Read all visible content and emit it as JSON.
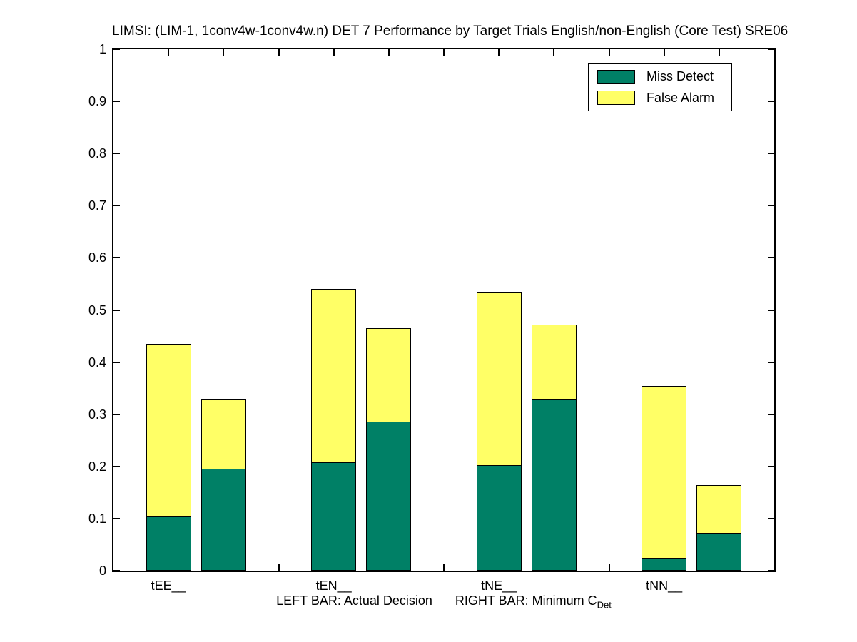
{
  "chart_data": {
    "type": "bar",
    "stacked": true,
    "layout": "pairs-per-category (left bar = Actual Decision, right bar = Minimum CDet)",
    "title": "LIMSI: (LIM-1, 1conv4w-1conv4w.n) DET 7 Performance by Target Trials English/non-English (Core Test) SRE06",
    "xlabel": {
      "left_bar": "LEFT BAR: Actual Decision",
      "right_bar": "RIGHT BAR: Minimum C",
      "subscript": "Det"
    },
    "categories": [
      "tEE__",
      "tEN__",
      "tNE__",
      "tNN__"
    ],
    "legend": [
      {
        "label": "Miss Detect",
        "color": "#008066"
      },
      {
        "label": "False Alarm",
        "color": "#FFFF66"
      }
    ],
    "groups": [
      {
        "category": "tEE__",
        "left": {
          "miss_detect": 0.104,
          "false_alarm": 0.331
        },
        "right": {
          "miss_detect": 0.196,
          "false_alarm": 0.133
        }
      },
      {
        "category": "tEN__",
        "left": {
          "miss_detect": 0.208,
          "false_alarm": 0.332
        },
        "right": {
          "miss_detect": 0.286,
          "false_alarm": 0.179
        }
      },
      {
        "category": "tNE__",
        "left": {
          "miss_detect": 0.202,
          "false_alarm": 0.332
        },
        "right": {
          "miss_detect": 0.329,
          "false_alarm": 0.143
        }
      },
      {
        "category": "tNN__",
        "left": {
          "miss_detect": 0.024,
          "false_alarm": 0.331
        },
        "right": {
          "miss_detect": 0.072,
          "false_alarm": 0.092
        }
      }
    ],
    "ylim": [
      0,
      1
    ],
    "ytick_labels": [
      "0",
      "0.1",
      "0.2",
      "0.3",
      "0.4",
      "0.5",
      "0.6",
      "0.7",
      "0.8",
      "0.9",
      "1"
    ],
    "xlim": [
      0.5,
      4.5
    ],
    "x_tick_step_units": 0.33333,
    "grid": false,
    "legend_position": "top-right",
    "colors": {
      "axis": "#000000",
      "miss_detect": "#008066",
      "false_alarm": "#FFFF66",
      "background": "#FFFFFF"
    }
  }
}
